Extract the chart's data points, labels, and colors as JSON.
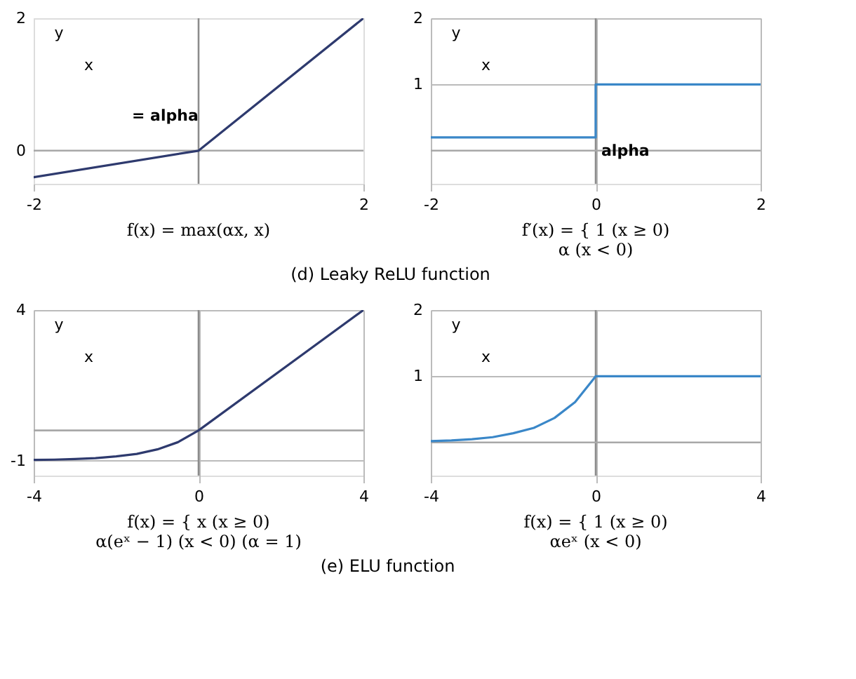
{
  "chart_data": [
    {
      "type": "line",
      "title": "f(x) = max(αx, x)",
      "xlabel": "x",
      "ylabel": "y",
      "xlim": [
        -2,
        2
      ],
      "ylim": [
        -0.5,
        2
      ],
      "xticks": [
        -2,
        2
      ],
      "yticks": [
        0,
        2
      ],
      "grid": false,
      "ref_lines": [
        {
          "axis": "x",
          "value": 0,
          "color": "#8c8c8c"
        },
        {
          "axis": "y",
          "value": 0,
          "color": "#a8a8a8"
        }
      ],
      "annotations": [
        "= alpha",
        "(d) Leaky ReLU function"
      ],
      "series": [
        {
          "color": "#2e3a6e",
          "x": [
            -2,
            0,
            2
          ],
          "values": [
            -0.4,
            0,
            2
          ]
        }
      ]
    },
    {
      "type": "line",
      "title": "f′(x) = { 1  (x ≥ 0)\nα  (x < 0)",
      "xlabel": "x",
      "ylabel": "y",
      "xlim": [
        -2,
        2
      ],
      "ylim": [
        -0.5,
        2
      ],
      "xticks": [
        -2,
        0,
        2
      ],
      "yticks": [
        1,
        2
      ],
      "grid": true,
      "ref_lines": [
        {
          "axis": "x",
          "value": 0,
          "color": "#8c8c8c"
        },
        {
          "axis": "y",
          "value": 0,
          "color": "#a8a8a8"
        }
      ],
      "annotations": [
        {
          "text": "alpha",
          "x": 0,
          "y": 0.2
        }
      ],
      "series": [
        {
          "type": "step",
          "color": "#3a87c8",
          "x": [
            -2,
            0,
            2
          ],
          "values": [
            0.2,
            1,
            1
          ]
        }
      ]
    },
    {
      "type": "line",
      "title": "f(x) = { x  (x ≥ 0)\nα(eˣ − 1)  (x < 0)  (α = 1)",
      "xlabel": "x",
      "ylabel": "y",
      "xlim": [
        -4,
        4
      ],
      "ylim": [
        -1.5,
        4
      ],
      "xticks": [
        -4,
        0,
        4
      ],
      "yticks": [
        -1,
        4
      ],
      "grid": true,
      "ref_lines": [
        {
          "axis": "x",
          "value": 0,
          "color": "#8c8c8c"
        },
        {
          "axis": "y",
          "value": 0,
          "color": "#a8a8a8"
        }
      ],
      "annotations": [
        "(e) ELU function"
      ],
      "series": [
        {
          "color": "#2e3a6e",
          "x": [
            -4,
            -3.5,
            -3,
            -2.5,
            -2,
            -1.5,
            -1,
            -0.5,
            0,
            4
          ],
          "values": [
            -0.98,
            -0.97,
            -0.95,
            -0.92,
            -0.86,
            -0.78,
            -0.63,
            -0.39,
            0,
            4
          ]
        }
      ]
    },
    {
      "type": "line",
      "title": "f(x) = { 1  (x ≥ 0)\nαeˣ  (x < 0)",
      "xlabel": "x",
      "ylabel": "y",
      "xlim": [
        -4,
        4
      ],
      "ylim": [
        -0.5,
        2
      ],
      "xticks": [
        -4,
        0,
        4
      ],
      "yticks": [
        1,
        2
      ],
      "grid": true,
      "ref_lines": [
        {
          "axis": "x",
          "value": 0,
          "color": "#8c8c8c"
        },
        {
          "axis": "y",
          "value": 0,
          "color": "#a8a8a8"
        }
      ],
      "series": [
        {
          "color": "#3a87c8",
          "x": [
            -4,
            -3.5,
            -3,
            -2.5,
            -2,
            -1.5,
            -1,
            -0.5,
            0,
            4
          ],
          "values": [
            0.02,
            0.03,
            0.05,
            0.08,
            0.14,
            0.22,
            0.37,
            0.61,
            1,
            1
          ]
        }
      ]
    }
  ]
}
